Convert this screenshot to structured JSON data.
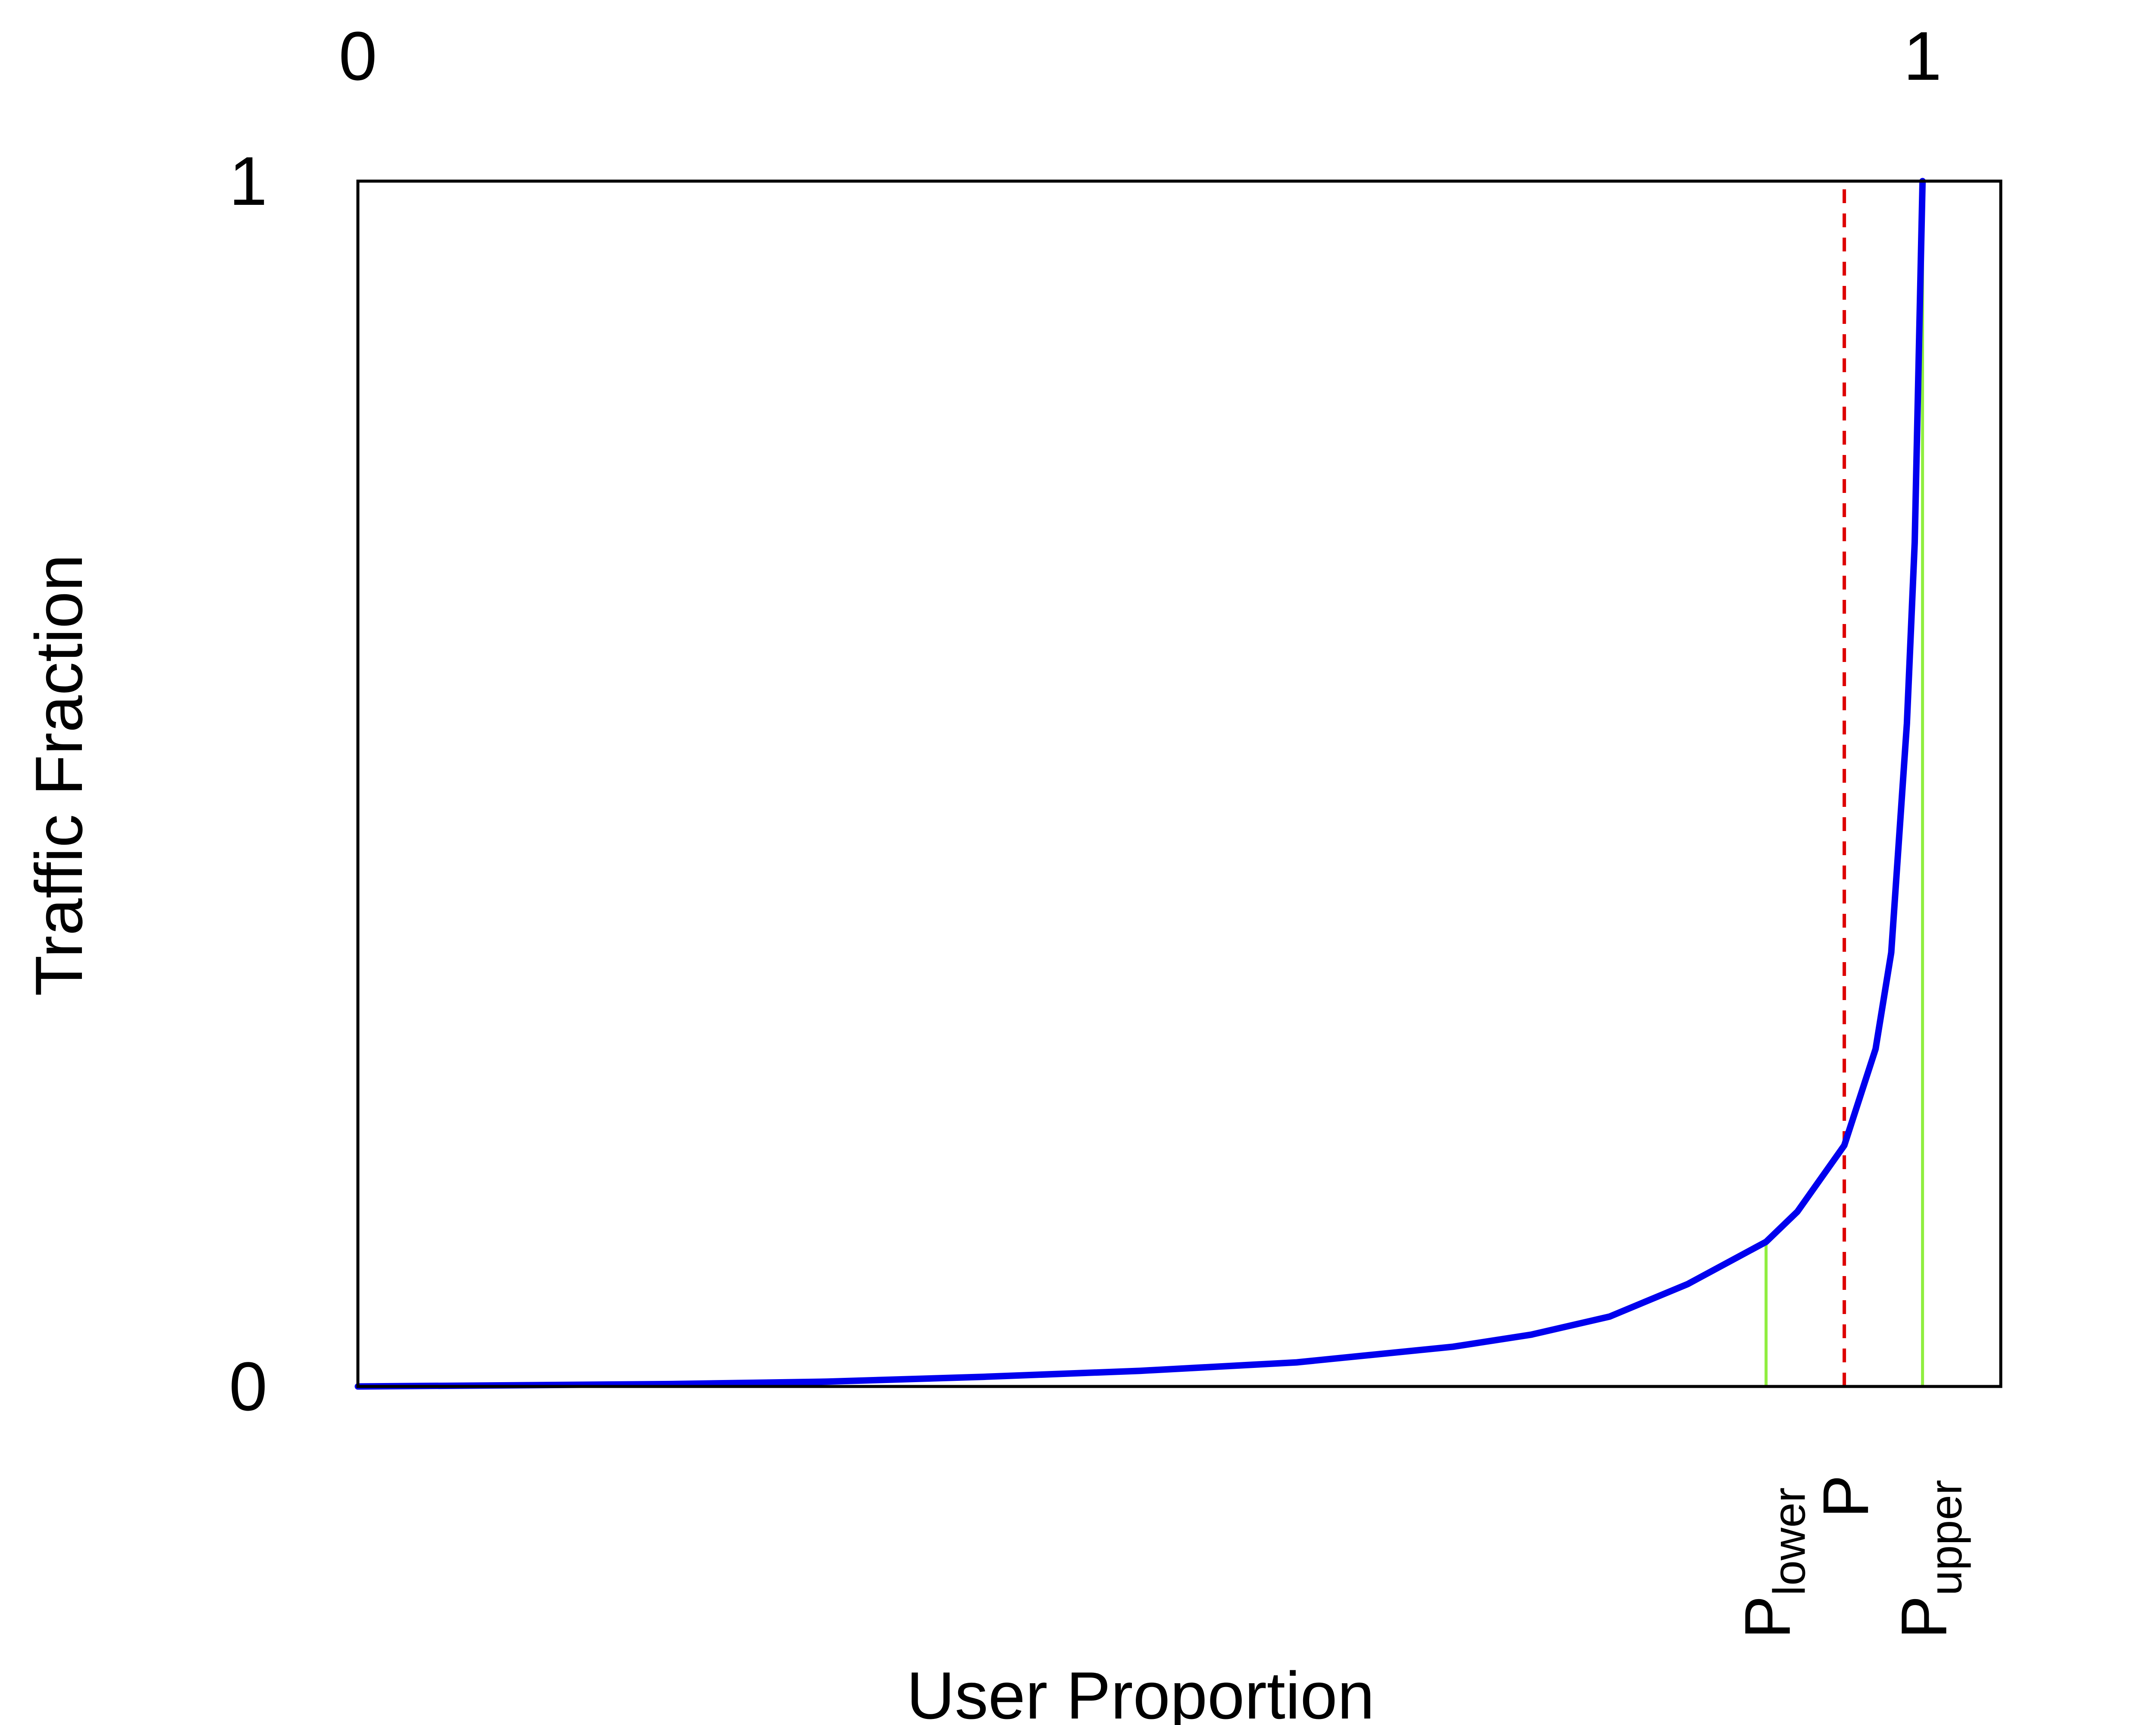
{
  "chart_data": {
    "type": "line",
    "title": "",
    "xlabel": "User Proportion",
    "ylabel": "Traffic Fraction",
    "xlim": [
      0,
      1.05
    ],
    "ylim": [
      0,
      1
    ],
    "x_ticks": [
      {
        "value": 0,
        "label": "0"
      },
      {
        "value": 1,
        "label": "1"
      }
    ],
    "y_ticks": [
      {
        "value": 0,
        "label": "0"
      },
      {
        "value": 1,
        "label": "1"
      }
    ],
    "grid": false,
    "legend": "none",
    "series": [
      {
        "color": "#0000ee",
        "x": [
          0,
          0.1,
          0.2,
          0.3,
          0.4,
          0.5,
          0.6,
          0.7,
          0.75,
          0.8,
          0.85,
          0.9,
          0.92,
          0.95,
          0.97,
          0.98,
          0.99,
          0.995,
          1.0
        ],
        "y": [
          0,
          0.001,
          0.002,
          0.004,
          0.008,
          0.013,
          0.02,
          0.033,
          0.043,
          0.058,
          0.085,
          0.12,
          0.145,
          0.2,
          0.28,
          0.36,
          0.55,
          0.7,
          1.0
        ]
      }
    ],
    "markers": [
      {
        "label_main": "P",
        "label_sub": "lower",
        "x": 0.9,
        "y_top": 0.12,
        "style": "solid",
        "color": "#90ee40"
      },
      {
        "label_main": "P",
        "label_sub": "",
        "x": 0.95,
        "y_top": 1.0,
        "style": "dashed",
        "color": "#dd0000"
      },
      {
        "label_main": "P",
        "label_sub": "upper",
        "x": 1.0,
        "y_top": 1.0,
        "style": "solid",
        "color": "#90ee40"
      }
    ]
  }
}
